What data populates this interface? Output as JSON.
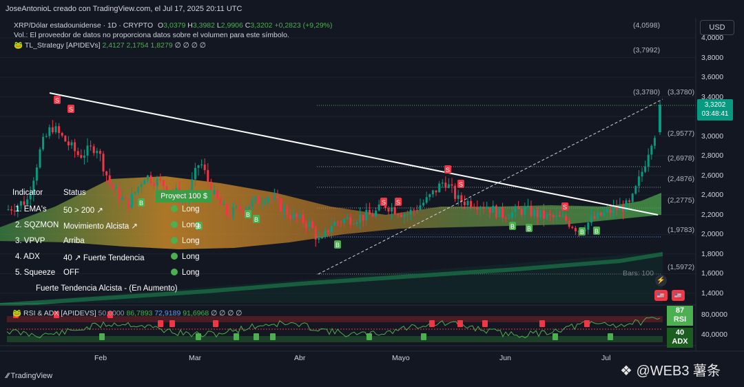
{
  "header": {
    "credit": "JoseAntonioL creado con TradingView.com, el Jul 17, 2025 20:11 UTC",
    "currency_button": "USD"
  },
  "legend": {
    "symbol": "XRP/Dólar estadounidense · 1D · CRYPTO",
    "ohlc": {
      "o_label": "O",
      "o": "3,0379",
      "h_label": "H",
      "h": "3,3982",
      "l_label": "L",
      "l": "2,9906",
      "c_label": "C",
      "c": "3,3202",
      "change": "+0,2823 (+9,29%)"
    },
    "volume_note": "Vol.: El proveedor de datos no proporciona datos sobre el volumen para este símbolo.",
    "strategy": {
      "name": "TL_Strategy [APIDEVs]",
      "v1": "2,4127",
      "v2": "2,1754",
      "v3": "1,8279",
      "rest": "∅ ∅ ∅ ∅"
    }
  },
  "price_axis": {
    "ticks": [
      "4,0000",
      "3,8000",
      "3,6000",
      "3,4000",
      "3,2000",
      "3,0000",
      "2,8000",
      "2,6000",
      "2,4000",
      "2,2000",
      "2,0000",
      "1,8000",
      "1,6000",
      "1,4000"
    ],
    "current_price": "3,3202",
    "countdown": "03:48:41"
  },
  "levels": [
    {
      "text": "(4,0598)",
      "color": "#4caf50"
    },
    {
      "text": "(3,7992)",
      "color": "#f23645"
    },
    {
      "text": "(3,3780)",
      "color": "#9598a1"
    },
    {
      "text": "(3,3780)",
      "color": "#9598a1"
    },
    {
      "text": "(2,9577)",
      "color": "#f23645"
    },
    {
      "text": "(2,6978)",
      "color": "#4caf50"
    },
    {
      "text": "(2,4876)",
      "color": "#4caf50"
    },
    {
      "text": "(2,2775)",
      "color": "#4caf50"
    },
    {
      "text": "(1,9783)",
      "color": "#5b9cf6"
    },
    {
      "text": "(1,5972)",
      "color": "#9598a1"
    }
  ],
  "bars_label": "Bars: 100",
  "time_axis": [
    "Feb",
    "Mar",
    "Abr",
    "Mayo",
    "Jun",
    "Jul"
  ],
  "signal_table": {
    "header": {
      "c1": "Indicator",
      "c2": "Status",
      "c3": "Proyect 100 $"
    },
    "rows": [
      {
        "c1": "1. EMA's",
        "c2": "50 > 200 ↗",
        "c3": "Long"
      },
      {
        "c1": "2. SQZMON",
        "c2": "Movimiento Alcista ↗",
        "c3": "Long"
      },
      {
        "c1": "3. VPVP",
        "c2": "Arriba",
        "c3": "Long"
      },
      {
        "c1": "4. ADX",
        "c2": "40 ↗ Fuerte Tendencia",
        "c3": "Long"
      },
      {
        "c1": "5. Squeeze",
        "c2": "OFF",
        "c3": "Long"
      }
    ],
    "footer": "Fuerte Tendencia Alcista - (En Aumento)"
  },
  "rsi_pane": {
    "title": "RSI & ADX [APIDEVS]",
    "v1": "50,0000",
    "v2": "86,7893",
    "v3": "72,9189",
    "v4": "91,6968",
    "rest": "∅ ∅ ∅ ∅",
    "ticks": [
      "80,0000",
      "40,0000"
    ],
    "rsi_value": "87",
    "rsi_label": "RSI",
    "adx_value": "40",
    "adx_label": "ADX"
  },
  "footer": {
    "tradingview": "TradingView",
    "watermark": "@WEB3 薯条"
  },
  "colors": {
    "bg": "#131722",
    "up": "#089981",
    "down": "#f23645",
    "trendline": "#ffffff",
    "band_green": "#4caf50",
    "band_orange": "#e67e22"
  },
  "chart_data": {
    "type": "candlestick",
    "title": "XRP/Dólar estadounidense · 1D · CRYPTO",
    "ylim": [
      1.3,
      4.1
    ],
    "y_ticks": [
      4.0,
      3.8,
      3.6,
      3.4,
      3.2,
      3.0,
      2.8,
      2.6,
      2.4,
      2.2,
      2.0,
      1.8,
      1.6,
      1.4
    ],
    "x_categories": [
      "Feb",
      "Mar",
      "Abr",
      "Mayo",
      "Jun",
      "Jul"
    ],
    "last_candle": {
      "open": 3.0379,
      "high": 3.3982,
      "low": 2.9906,
      "close": 3.3202,
      "change": 0.2823,
      "change_pct": 9.29
    },
    "levels": [
      4.0598,
      3.7992,
      3.378,
      2.9577,
      2.6978,
      2.4876,
      2.2775,
      1.9783,
      1.5972
    ],
    "strategy_values": [
      2.4127,
      2.1754,
      1.8279
    ],
    "rsi": 86.7893,
    "adx": 40
  }
}
